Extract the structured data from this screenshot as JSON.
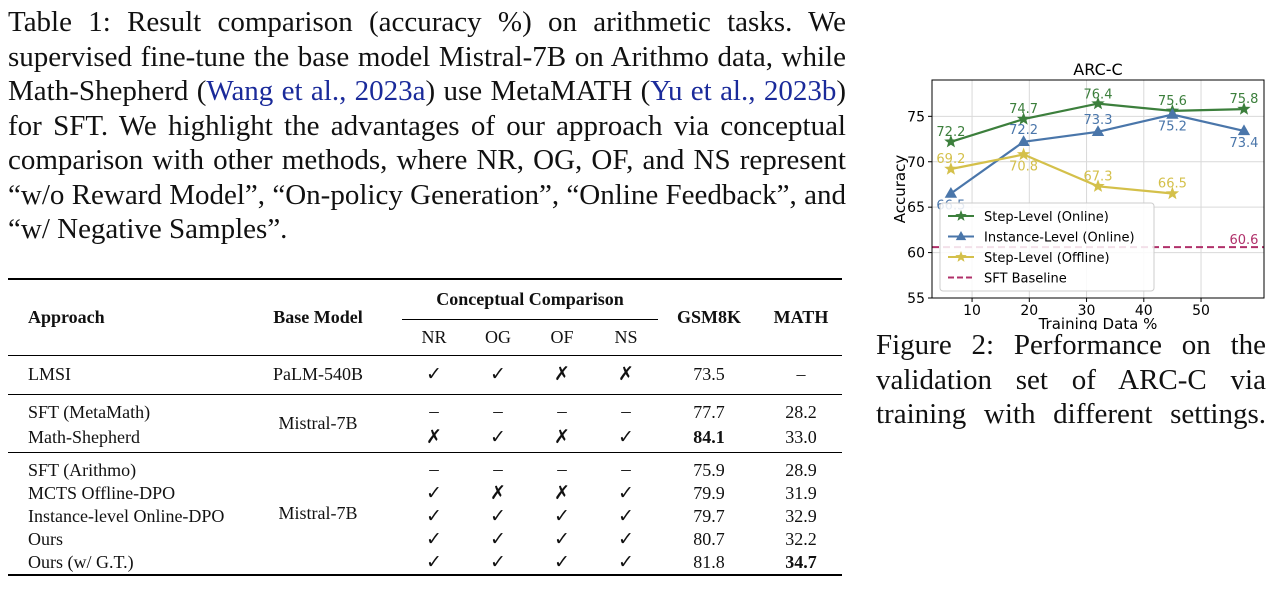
{
  "caption": {
    "prefix": "Table 1: Result comparison (accuracy %) on arithmetic tasks. We supervised fine-tune the base model Mistral-7B on Arithmo data, while Math-Shepherd (",
    "cite1": "Wang et al., 2023a",
    "mid": ") use MetaMATH (",
    "cite2": "Yu et al., 2023b",
    "suffix": ") for SFT. We highlight the advantages of our approach via conceptual comparison with other methods, where NR, OG, OF, and NS represent “w/o Reward Model”, “On-policy Generation”, “Online Feedback”, and “w/ Negative Samples”."
  },
  "table": {
    "headers": {
      "approach": "Approach",
      "base_model": "Base Model",
      "conceptual": "Conceptual Comparison",
      "nr": "NR",
      "og": "OG",
      "of": "OF",
      "ns": "NS",
      "gsm8k": "GSM8K",
      "math": "MATH"
    },
    "group1": {
      "base_model": "PaLM-540B",
      "rows": [
        {
          "approach": "LMSI",
          "nr": "✓",
          "og": "✓",
          "of": "✗",
          "ns": "✗",
          "gsm8k": "73.5",
          "math": "–"
        }
      ]
    },
    "group2": {
      "base_model": "Mistral-7B",
      "rows": [
        {
          "approach": "SFT (MetaMath)",
          "nr": "–",
          "og": "–",
          "of": "–",
          "ns": "–",
          "gsm8k": "77.7",
          "math": "28.2"
        },
        {
          "approach": "Math-Shepherd",
          "nr": "✗",
          "og": "✓",
          "of": "✗",
          "ns": "✓",
          "gsm8k": "84.1",
          "math": "33.0"
        }
      ]
    },
    "group3": {
      "base_model": "Mistral-7B",
      "rows": [
        {
          "approach": "SFT (Arithmo)",
          "nr": "–",
          "og": "–",
          "of": "–",
          "ns": "–",
          "gsm8k": "75.9",
          "math": "28.9"
        },
        {
          "approach": "MCTS Offline-DPO",
          "nr": "✓",
          "og": "✗",
          "of": "✗",
          "ns": "✓",
          "gsm8k": "79.9",
          "math": "31.9"
        },
        {
          "approach": "Instance-level Online-DPO",
          "nr": "✓",
          "og": "✓",
          "of": "✓",
          "ns": "✓",
          "gsm8k": "79.7",
          "math": "32.9"
        },
        {
          "approach": "Ours",
          "nr": "✓",
          "og": "✓",
          "of": "✓",
          "ns": "✓",
          "gsm8k": "80.7",
          "math": "32.2"
        },
        {
          "approach": "Ours (w/ G.T.)",
          "nr": "✓",
          "og": "✓",
          "of": "✓",
          "ns": "✓",
          "gsm8k": "81.8",
          "math": "34.7"
        }
      ]
    }
  },
  "figure_caption": "Figure 2: Performance on the validation set of ARC-C via training with different settings.",
  "chart_data": {
    "type": "line",
    "title": "ARC-C",
    "xlabel": "Training Data %",
    "ylabel": "Accuracy",
    "xlim": [
      3,
      61
    ],
    "ylim": [
      55,
      79
    ],
    "xticks": [
      10,
      20,
      30,
      40,
      50
    ],
    "yticks": [
      55,
      60,
      65,
      70,
      75
    ],
    "grid": true,
    "legend_position": "lower-left",
    "series": [
      {
        "name": "Step-Level (Online)",
        "color": "#3c7f3c",
        "marker": "star",
        "x": [
          6.3,
          19,
          32,
          45,
          57.5
        ],
        "y": [
          72.2,
          74.7,
          76.4,
          75.6,
          75.8
        ],
        "labels": [
          "72.2",
          "74.7",
          "76.4",
          "75.6",
          "75.8"
        ]
      },
      {
        "name": "Instance-Level (Online)",
        "color": "#4a76aa",
        "marker": "triangle",
        "x": [
          6.3,
          19,
          32,
          45,
          57.5
        ],
        "y": [
          66.5,
          72.2,
          73.3,
          75.2,
          73.4
        ],
        "labels": [
          "66.5",
          "72.2",
          "73.3",
          "75.2",
          "73.4"
        ]
      },
      {
        "name": "Step-Level (Offline)",
        "color": "#d4c04a",
        "marker": "star",
        "x": [
          6.3,
          19,
          32,
          45
        ],
        "y": [
          69.2,
          70.8,
          67.3,
          66.5
        ],
        "labels": [
          "69.2",
          "70.8",
          "67.3",
          "66.5"
        ]
      }
    ],
    "baseline": {
      "name": "SFT Baseline",
      "value": 60.6,
      "label": "60.6",
      "color": "#b0306a"
    }
  }
}
